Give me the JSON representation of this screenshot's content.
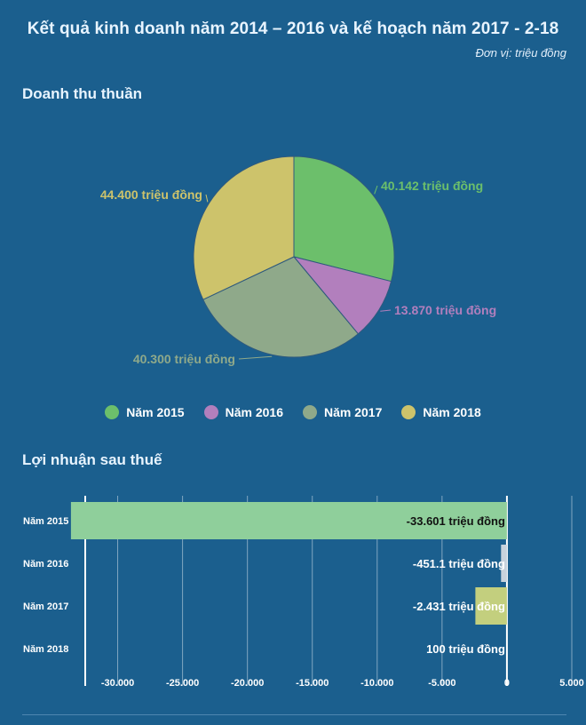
{
  "title": "Kết quả kinh doanh năm 2014 – 2016 và kế hoạch năm 2017 - 2-18",
  "unit": "Đơn vị: triệu đồng",
  "colors": {
    "background": "#1b5f8e",
    "y2015": "#6cbf6b",
    "y2016": "#b27fbd",
    "y2017": "#8fa98a",
    "y2018": "#cdc36b",
    "bar2015": "#8fcf9b",
    "bar2016": "#c8d2dc",
    "bar2017": "#c3cf7e"
  },
  "chart_data": [
    {
      "type": "pie",
      "title": "Doanh thu thuần",
      "categories": [
        "Năm 2015",
        "Năm 2016",
        "Năm 2017",
        "Năm 2018"
      ],
      "values": [
        40142,
        13870,
        40300,
        44400
      ],
      "labels": [
        "40.142 triệu đồng",
        "13.870 triệu đồng",
        "40.300 triệu đồng",
        "44.400 triệu đồng"
      ],
      "legend": [
        "Năm 2015",
        "Năm 2016",
        "Năm 2017",
        "Năm 2018"
      ],
      "legend_position": "bottom"
    },
    {
      "type": "bar",
      "orientation": "horizontal",
      "title": "Lợi nhuận sau thuế",
      "categories": [
        "Năm 2015",
        "Năm 2016",
        "Năm 2017",
        "Năm 2018"
      ],
      "values": [
        -33601,
        -451.1,
        -2431,
        100
      ],
      "labels": [
        "-33.601 triệu đồng",
        "-451.1 triệu đồng",
        "-2.431 triệu đồng",
        "100 triệu đồng"
      ],
      "xlim": [
        -32500,
        5000
      ],
      "ticks": [
        -30000,
        -25000,
        -20000,
        -15000,
        -10000,
        -5000,
        0,
        5000
      ],
      "tick_labels": [
        "-30.000",
        "-25.000",
        "-20.000",
        "-15.000",
        "-10.000",
        "-5.000",
        "0",
        "5.000"
      ],
      "grid": true
    }
  ]
}
